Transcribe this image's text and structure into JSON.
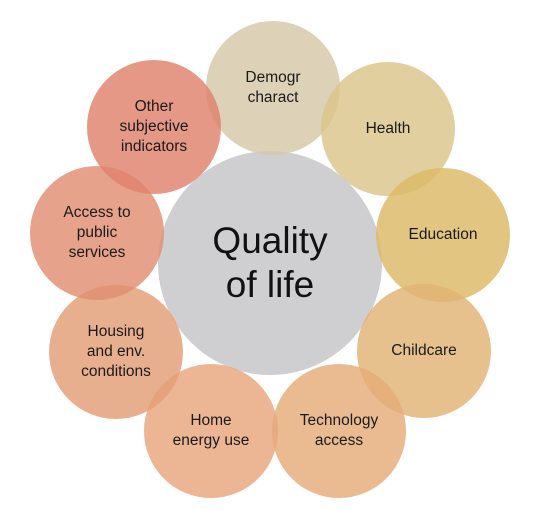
{
  "center": {
    "label": "Quality\nof life",
    "color": "#cfcfd1"
  },
  "nodes": [
    {
      "id": "demographics",
      "label": "Demogr\ncharact",
      "color": "#d6c8a8"
    },
    {
      "id": "health",
      "label": "Health",
      "color": "#dcc58a"
    },
    {
      "id": "education",
      "label": "Education",
      "color": "#dcb865"
    },
    {
      "id": "childcare",
      "label": "Childcare",
      "color": "#e1b274"
    },
    {
      "id": "technology-access",
      "label": "Technology\naccess",
      "color": "#e5ac79"
    },
    {
      "id": "home-energy-use",
      "label": "Home\nenergy use",
      "color": "#e8a67c"
    },
    {
      "id": "housing-conditions",
      "label": "Housing\nand env.\nconditions",
      "color": "#e39e75"
    },
    {
      "id": "public-services",
      "label": "Access to\npublic\nservices",
      "color": "#e08d70"
    },
    {
      "id": "subjective-indicators",
      "label": "Other\nsubjective\nindicators",
      "color": "#e0816c"
    }
  ]
}
